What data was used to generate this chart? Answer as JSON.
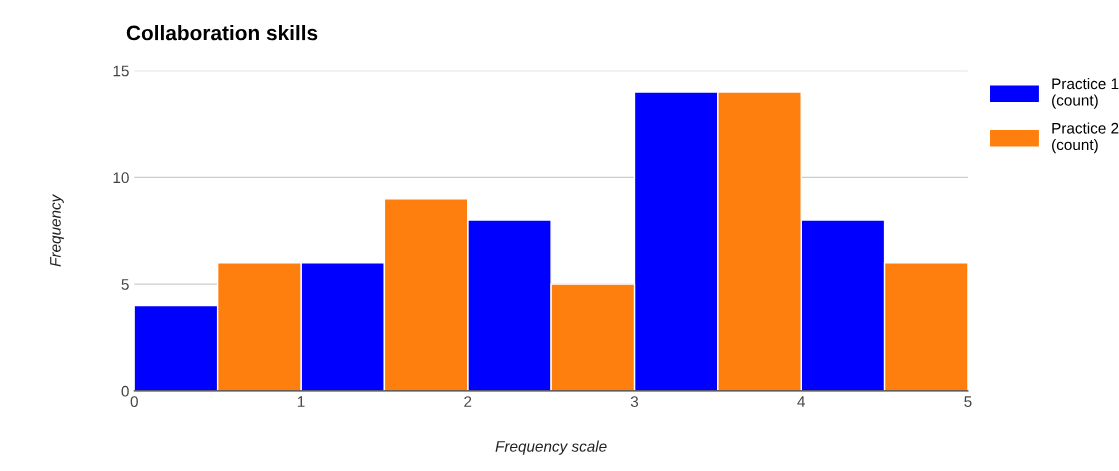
{
  "chart_data": {
    "type": "histogram",
    "title": "Collaboration skills",
    "xlabel": "Frequency scale",
    "ylabel": "Frequency",
    "bins": [
      0,
      1,
      2,
      3,
      4,
      5
    ],
    "series": [
      {
        "name": "Practice 1 (count)",
        "color": "#0000ff",
        "values": [
          4,
          6,
          8,
          14,
          8
        ]
      },
      {
        "name": "Practice 2 (count)",
        "color": "#ff7f0e",
        "values": [
          6,
          9,
          5,
          14,
          6
        ]
      }
    ],
    "xlim": [
      0,
      5
    ],
    "xticks": [
      0,
      1,
      2,
      3,
      4,
      5
    ],
    "ylim": [
      0,
      15
    ],
    "yticks": [
      0,
      5,
      10,
      15
    ],
    "grid": "y",
    "legend": "top right"
  }
}
